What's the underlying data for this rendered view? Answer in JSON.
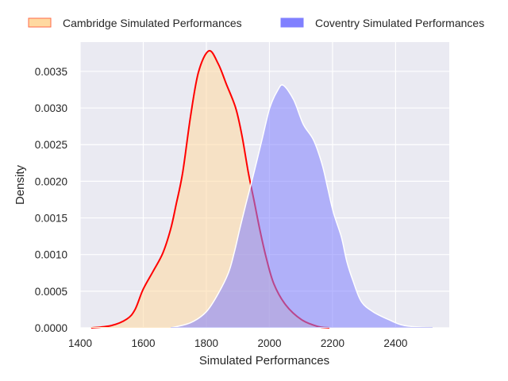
{
  "chart_data": {
    "type": "area",
    "title": "",
    "xlabel": "Simulated Performances",
    "ylabel": "Density",
    "xlim": [
      1400,
      2570
    ],
    "ylim": [
      0,
      0.0039
    ],
    "xticks": [
      1400,
      1600,
      1800,
      2000,
      2200,
      2400
    ],
    "xtick_labels": [
      "1400",
      "1600",
      "1800",
      "2000",
      "2200",
      "2400"
    ],
    "yticks": [
      0,
      0.0005,
      0.001,
      0.0015,
      0.002,
      0.0025,
      0.003,
      0.0035
    ],
    "ytick_labels": [
      "0.0000",
      "0.0005",
      "0.0010",
      "0.0015",
      "0.0020",
      "0.0025",
      "0.0030",
      "0.0035"
    ],
    "grid": true,
    "legend_position": "top (above plot, horizontal)",
    "background_color": "#eaeaf2",
    "series": [
      {
        "name": "Cambridge Simulated Performances",
        "fill_color": "#ffd9a0",
        "edge_color": "#ff0000",
        "points": [
          [
            1435,
            0
          ],
          [
            1498,
            3e-05
          ],
          [
            1548,
            0.00012
          ],
          [
            1574,
            0.00025
          ],
          [
            1599,
            0.00052
          ],
          [
            1631,
            0.00077
          ],
          [
            1662,
            0.00102
          ],
          [
            1687,
            0.00135
          ],
          [
            1704,
            0.00168
          ],
          [
            1725,
            0.00212
          ],
          [
            1750,
            0.00289
          ],
          [
            1775,
            0.00349
          ],
          [
            1808,
            0.00378
          ],
          [
            1838,
            0.0036
          ],
          [
            1863,
            0.00333
          ],
          [
            1893,
            0.003
          ],
          [
            1913,
            0.00262
          ],
          [
            1933,
            0.00212
          ],
          [
            1951,
            0.00174
          ],
          [
            1969,
            0.00135
          ],
          [
            1989,
            0.00097
          ],
          [
            2014,
            0.0006
          ],
          [
            2052,
            0.00031
          ],
          [
            2102,
            0.00011
          ],
          [
            2152,
            2e-05
          ],
          [
            2190,
            0
          ]
        ]
      },
      {
        "name": "Coventry Simulated Performances",
        "fill_color": "#8080ff",
        "edge_color": "#ffffff",
        "points": [
          [
            1687,
            0
          ],
          [
            1750,
            7e-05
          ],
          [
            1800,
            0.00022
          ],
          [
            1838,
            0.00047
          ],
          [
            1870,
            0.00075
          ],
          [
            1888,
            0.00102
          ],
          [
            1906,
            0.00135
          ],
          [
            1926,
            0.0017
          ],
          [
            1951,
            0.00212
          ],
          [
            1976,
            0.00256
          ],
          [
            2001,
            0.003
          ],
          [
            2026,
            0.00324
          ],
          [
            2044,
            0.00331
          ],
          [
            2077,
            0.00311
          ],
          [
            2107,
            0.00278
          ],
          [
            2140,
            0.00256
          ],
          [
            2167,
            0.00223
          ],
          [
            2185,
            0.0019
          ],
          [
            2203,
            0.00157
          ],
          [
            2228,
            0.00124
          ],
          [
            2245,
            0.00091
          ],
          [
            2265,
            0.00064
          ],
          [
            2291,
            0.00036
          ],
          [
            2328,
            0.00022
          ],
          [
            2379,
            0.00011
          ],
          [
            2429,
            3e-05
          ],
          [
            2517,
            0
          ]
        ]
      }
    ]
  }
}
